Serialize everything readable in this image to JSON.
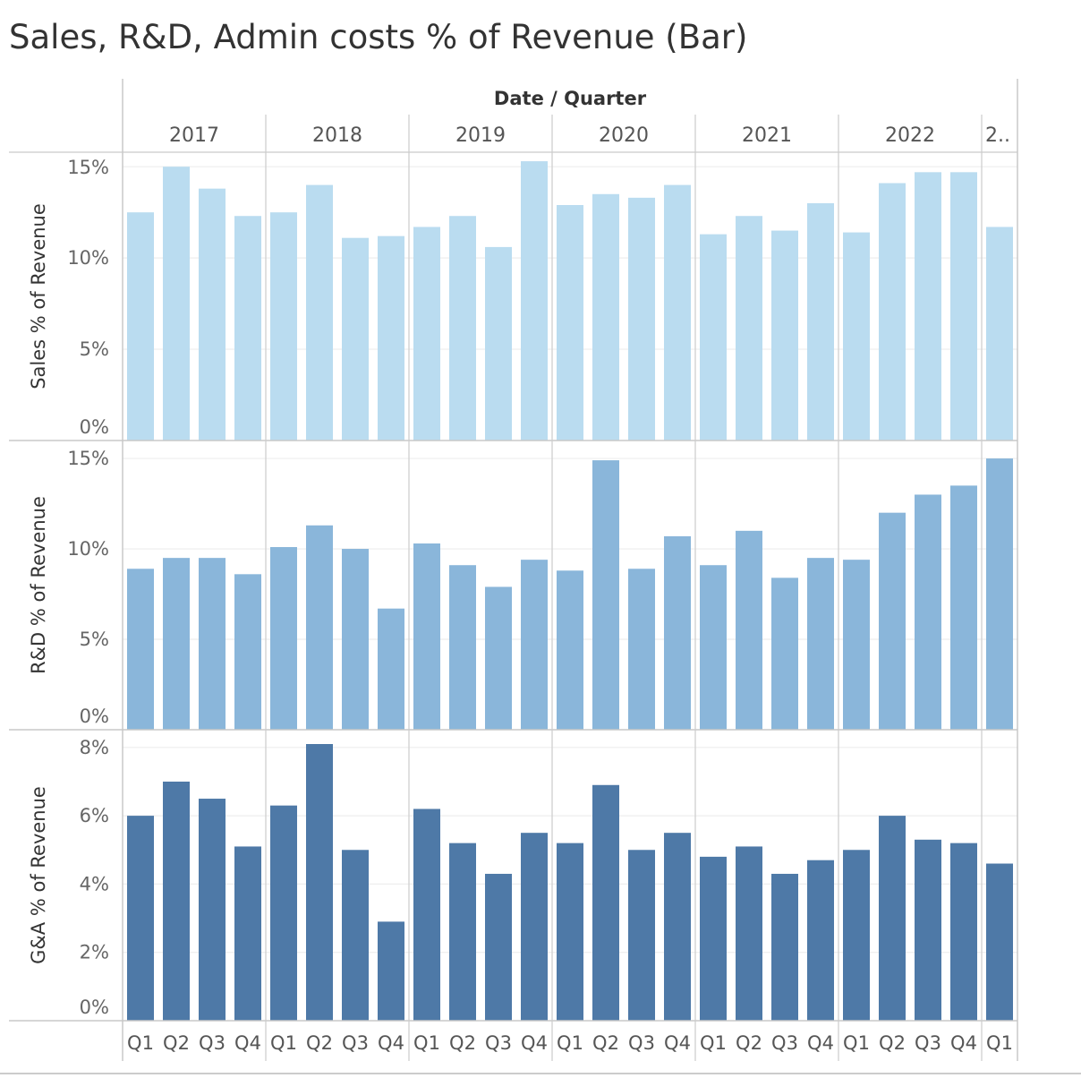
{
  "title": "Sales, R&D, Admin costs % of Revenue (Bar)",
  "chart_data": {
    "type": "bar",
    "column_header": "Date / Quarter",
    "years": [
      "2017",
      "2018",
      "2019",
      "2020",
      "2021",
      "2022",
      "2.."
    ],
    "categories": [
      "Q1",
      "Q2",
      "Q3",
      "Q4",
      "Q1",
      "Q2",
      "Q3",
      "Q4",
      "Q1",
      "Q2",
      "Q3",
      "Q4",
      "Q1",
      "Q2",
      "Q3",
      "Q4",
      "Q1",
      "Q2",
      "Q3",
      "Q4",
      "Q1",
      "Q2",
      "Q3",
      "Q4",
      "Q1"
    ],
    "panels": [
      {
        "ylabel": "Sales % of Revenue",
        "color": "#badcf0",
        "ylim": [
          0,
          15.5
        ],
        "ticks": [
          0,
          5,
          10,
          15
        ],
        "tick_labels": [
          "0%",
          "5%",
          "10%",
          "15%"
        ],
        "values": [
          12.5,
          15.0,
          13.8,
          12.3,
          12.5,
          14.0,
          11.1,
          11.2,
          11.7,
          12.3,
          10.6,
          15.3,
          12.9,
          13.5,
          13.3,
          14.0,
          11.3,
          12.3,
          11.5,
          13.0,
          11.4,
          14.1,
          14.7,
          14.7,
          11.7
        ]
      },
      {
        "ylabel": "R&D % of Revenue",
        "color": "#8ab6da",
        "ylim": [
          0,
          15.3
        ],
        "ticks": [
          0,
          5,
          10,
          15
        ],
        "tick_labels": [
          "0%",
          "5%",
          "10%",
          "15%"
        ],
        "values": [
          8.9,
          9.5,
          9.5,
          8.6,
          10.1,
          11.3,
          10.0,
          6.7,
          10.3,
          9.1,
          7.9,
          9.4,
          8.8,
          14.9,
          8.9,
          10.7,
          9.1,
          11.0,
          8.4,
          9.5,
          9.4,
          12.0,
          13.0,
          13.5,
          15.0
        ]
      },
      {
        "ylabel": "G&A % of Revenue",
        "color": "#4e79a7",
        "ylim": [
          0,
          8.1
        ],
        "ticks": [
          0,
          2,
          4,
          6,
          8
        ],
        "tick_labels": [
          "0%",
          "2%",
          "4%",
          "6%",
          "8%"
        ],
        "values": [
          6.0,
          7.0,
          6.5,
          5.1,
          6.3,
          8.1,
          5.0,
          2.9,
          6.2,
          5.2,
          4.3,
          5.5,
          5.2,
          6.9,
          5.0,
          5.5,
          4.8,
          5.1,
          4.3,
          4.7,
          5.0,
          6.0,
          5.3,
          5.2,
          4.6
        ]
      }
    ]
  }
}
